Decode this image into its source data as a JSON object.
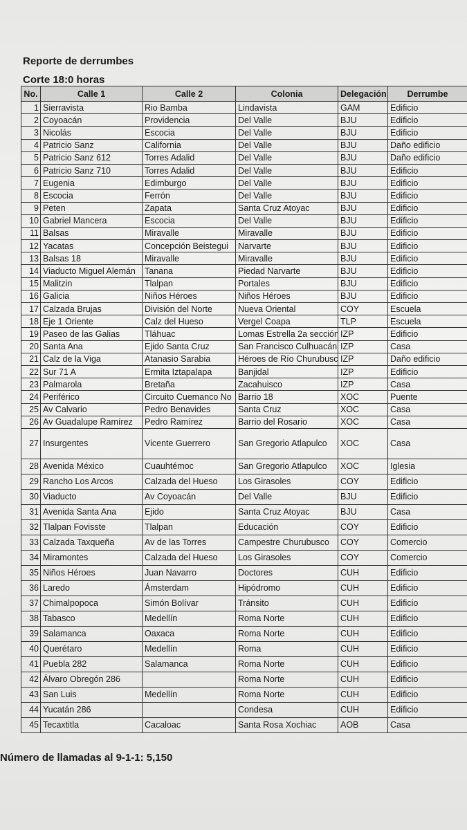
{
  "header": {
    "title": "Reporte de derrumbes",
    "subtitle": "Corte 18:0 horas"
  },
  "table": {
    "header": [
      "No.",
      "Calle 1",
      "Calle 2",
      "Colonia",
      "Delegación",
      "Derrumbe"
    ],
    "rows": [
      [
        1,
        "Sierravista",
        "Rio Bamba",
        "Lindavista",
        "GAM",
        "Edificio"
      ],
      [
        2,
        "Coyoacán",
        "Providencia",
        "Del Valle",
        "BJU",
        "Edificio"
      ],
      [
        3,
        "Nicolás",
        "Escocia",
        "Del Valle",
        "BJU",
        "Edificio"
      ],
      [
        4,
        "Patricio Sanz",
        "California",
        "Del Valle",
        "BJU",
        "Daño edificio"
      ],
      [
        5,
        "Patricio Sanz 612",
        "Torres Adalid",
        "Del Valle",
        "BJU",
        "Daño edificio"
      ],
      [
        6,
        "Patricio Sanz 710",
        "Torres Adalid",
        "Del Valle",
        "BJU",
        "Edificio"
      ],
      [
        7,
        "Eugenia",
        "Edimburgo",
        "Del Valle",
        "BJU",
        "Edificio"
      ],
      [
        8,
        "Escocia",
        "Ferrón",
        "Del Valle",
        "BJU",
        "Edificio"
      ],
      [
        9,
        "Peten",
        "Zapata",
        "Santa Cruz Atoyac",
        "BJU",
        "Edificio"
      ],
      [
        10,
        "Gabriel Mancera",
        "Escocia",
        "Del Valle",
        "BJU",
        "Edificio"
      ],
      [
        11,
        "Balsas",
        "Miravalle",
        "Miravalle",
        "BJU",
        "Edificio"
      ],
      [
        12,
        "Yacatas",
        "Concepción Beistegui",
        "Narvarte",
        "BJU",
        "Edificio"
      ],
      [
        13,
        "Balsas 18",
        "Miravalle",
        "Miravalle",
        "BJU",
        "Edificio"
      ],
      [
        14,
        "Viaducto Miguel Alemán",
        "Tanana",
        "Piedad Narvarte",
        "BJU",
        "Edificio"
      ],
      [
        15,
        "Malitzin",
        "Tlalpan",
        "Portales",
        "BJU",
        "Edificio"
      ],
      [
        16,
        "Galicia",
        "Niños Héroes",
        "Niños Héroes",
        "BJU",
        "Edificio"
      ],
      [
        17,
        "Calzada Brujas",
        "División del Norte",
        "Nueva Oriental",
        "COY",
        "Escuela"
      ],
      [
        18,
        "Eje 1 Oriente",
        "Calz del Hueso",
        "Vergel Coapa",
        "TLP",
        "Escuela"
      ],
      [
        19,
        "Paseo de las Galias",
        "Tláhuac",
        "Lomas Estrella 2a sección",
        "IZP",
        "Edificio"
      ],
      [
        20,
        "Santa Ana",
        "Ejido Santa Cruz",
        "San Francisco Culhuacán",
        "IZP",
        "Casa"
      ],
      [
        21,
        "Calz de la Viga",
        "Atanasio Sarabia",
        "Héroes de Río Churubusco",
        "IZP",
        "Daño edificio"
      ],
      [
        22,
        "Sur 71 A",
        "Ermita Iztapalapa",
        "Banjidal",
        "IZP",
        "Edificio"
      ],
      [
        23,
        "Palmarola",
        "Bretaña",
        "Zacahuisco",
        "IZP",
        "Casa"
      ],
      [
        24,
        "Periférico",
        "Circuito Cuemanco No",
        "Barrio 18",
        "XOC",
        "Puente"
      ],
      [
        25,
        "Av Calvario",
        "Pedro Benavides",
        "Santa Cruz",
        "XOC",
        "Casa"
      ],
      [
        26,
        "Av Guadalupe Ramírez",
        "Pedro Ramírez",
        "Barrio del Rosario",
        "XOC",
        "Casa"
      ],
      [
        27,
        "Insurgentes",
        "Vicente Guerrero",
        "San Gregorio Atlapulco",
        "XOC",
        "Casa"
      ],
      [
        28,
        "Avenida México",
        "Cuauhtémoc",
        "San Gregorio Atlapulco",
        "XOC",
        "Iglesia"
      ],
      [
        29,
        "Rancho Los Arcos",
        "Calzada del Hueso",
        "Los Girasoles",
        "COY",
        "Edificio"
      ],
      [
        30,
        "Viaducto",
        "Av Coyoacán",
        "Del Valle",
        "BJU",
        "Edificio"
      ],
      [
        31,
        "Avenida Santa Ana",
        "Ejido",
        "Santa Cruz Atoyac",
        "BJU",
        "Casa"
      ],
      [
        32,
        "Tlalpan Fovisste",
        "Tlalpan",
        "Educación",
        "COY",
        "Edificio"
      ],
      [
        33,
        "Calzada Taxqueña",
        "Av de las Torres",
        "Campestre Churubusco",
        "COY",
        "Comercio"
      ],
      [
        34,
        "Miramontes",
        "Calzada del Hueso",
        "Los Girasoles",
        "COY",
        "Comercio"
      ],
      [
        35,
        "Niños Héroes",
        "Juan Navarro",
        "Doctores",
        "CUH",
        "Edificio"
      ],
      [
        36,
        "Laredo",
        "Ámsterdam",
        "Hipódromo",
        "CUH",
        "Edificio"
      ],
      [
        37,
        "Chimalpopoca",
        "Simón Bolívar",
        "Tránsito",
        "CUH",
        "Edificio"
      ],
      [
        38,
        "Tabasco",
        "Medellín",
        "Roma Norte",
        "CUH",
        "Edificio"
      ],
      [
        39,
        "Salamanca",
        "Oaxaca",
        "Roma Norte",
        "CUH",
        "Edificio"
      ],
      [
        40,
        "Querétaro",
        "Medellín",
        "Roma",
        "CUH",
        "Edificio"
      ],
      [
        41,
        "Puebla 282",
        "Salamanca",
        "Roma Norte",
        "CUH",
        "Edificio"
      ],
      [
        42,
        "Álvaro Obregón 286",
        null,
        "Roma Norte",
        "CUH",
        "Edificio"
      ],
      [
        43,
        "San Luis",
        "Medellín",
        "Roma Norte",
        "CUH",
        "Edificio"
      ],
      [
        44,
        "Yucatán 286",
        null,
        "Condesa",
        "CUH",
        "Edificio"
      ],
      [
        45,
        "Tecaxtitla",
        "Cacaloac",
        "Santa Rosa Xochiac",
        "AOB",
        "Casa"
      ]
    ]
  },
  "footer": {
    "text": "Número de llamadas al 9-1-1: 5,150"
  }
}
